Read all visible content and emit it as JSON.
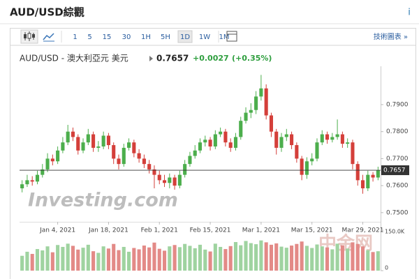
{
  "header": {
    "title": "AUD/USD綜觀",
    "info": "i"
  },
  "toolbar": {
    "intervals": [
      "1",
      "5",
      "15",
      "30",
      "1H",
      "5H",
      "1D",
      "1W",
      "1M"
    ],
    "active": "1D",
    "link": "技術圖表 »"
  },
  "quote": {
    "pair": "AUD/USD - 澳大利亞元 美元",
    "price": "0.7657",
    "change": "+0.0027",
    "percent": "(+0.35%)"
  },
  "chart_data": {
    "type": "candlestick",
    "open": [
      0.759,
      0.7605,
      0.762,
      0.7615,
      0.764,
      0.766,
      0.77,
      0.769,
      0.773,
      0.776,
      0.78,
      0.778,
      0.773,
      0.776,
      0.779,
      0.774,
      0.7745,
      0.7785,
      0.775,
      0.77,
      0.768,
      0.774,
      0.776,
      0.772,
      0.77,
      0.768,
      0.766,
      0.764,
      0.762,
      0.761,
      0.763,
      0.76,
      0.764,
      0.768,
      0.771,
      0.773,
      0.776,
      0.777,
      0.7745,
      0.779,
      0.78,
      0.776,
      0.774,
      0.778,
      0.784,
      0.787,
      0.788,
      0.793,
      0.796,
      0.786,
      0.78,
      0.774,
      0.778,
      0.779,
      0.775,
      0.77,
      0.764,
      0.769,
      0.77,
      0.776,
      0.779,
      0.777,
      0.778,
      0.779,
      0.7755,
      0.776,
      0.768,
      0.762,
      0.759,
      0.764,
      0.763
    ],
    "high": [
      0.762,
      0.764,
      0.7635,
      0.7655,
      0.768,
      0.772,
      0.7715,
      0.7745,
      0.778,
      0.7825,
      0.7815,
      0.779,
      0.7775,
      0.781,
      0.78,
      0.7765,
      0.78,
      0.7795,
      0.776,
      0.7715,
      0.7755,
      0.7775,
      0.777,
      0.7735,
      0.7715,
      0.7695,
      0.7675,
      0.7655,
      0.764,
      0.7645,
      0.764,
      0.7655,
      0.7695,
      0.7725,
      0.775,
      0.7775,
      0.7785,
      0.778,
      0.7805,
      0.7815,
      0.781,
      0.7775,
      0.7795,
      0.7855,
      0.789,
      0.7905,
      0.795,
      0.801,
      0.7975,
      0.787,
      0.781,
      0.7795,
      0.781,
      0.78,
      0.776,
      0.771,
      0.7705,
      0.772,
      0.7775,
      0.7805,
      0.78,
      0.7795,
      0.7845,
      0.78,
      0.7775,
      0.777,
      0.769,
      0.764,
      0.7655,
      0.765,
      0.767
    ],
    "low": [
      0.7575,
      0.7595,
      0.76,
      0.7605,
      0.763,
      0.765,
      0.7675,
      0.768,
      0.772,
      0.775,
      0.7765,
      0.7715,
      0.772,
      0.775,
      0.7725,
      0.7725,
      0.7735,
      0.7735,
      0.768,
      0.766,
      0.767,
      0.773,
      0.7705,
      0.7685,
      0.7665,
      0.7645,
      0.759,
      0.7605,
      0.7595,
      0.759,
      0.7585,
      0.759,
      0.763,
      0.767,
      0.77,
      0.772,
      0.7745,
      0.773,
      0.7735,
      0.778,
      0.7745,
      0.7725,
      0.773,
      0.777,
      0.783,
      0.785,
      0.7865,
      0.7915,
      0.7845,
      0.778,
      0.7715,
      0.7725,
      0.7765,
      0.7735,
      0.7685,
      0.762,
      0.7625,
      0.7675,
      0.769,
      0.775,
      0.7755,
      0.776,
      0.777,
      0.774,
      0.774,
      0.766,
      0.76,
      0.757,
      0.758,
      0.7615,
      0.762
    ],
    "close": [
      0.7605,
      0.762,
      0.7615,
      0.764,
      0.766,
      0.77,
      0.769,
      0.773,
      0.776,
      0.78,
      0.778,
      0.773,
      0.776,
      0.779,
      0.774,
      0.7745,
      0.7785,
      0.775,
      0.77,
      0.768,
      0.774,
      0.776,
      0.772,
      0.77,
      0.768,
      0.766,
      0.764,
      0.762,
      0.761,
      0.763,
      0.76,
      0.764,
      0.768,
      0.771,
      0.773,
      0.776,
      0.777,
      0.7745,
      0.779,
      0.78,
      0.776,
      0.774,
      0.778,
      0.784,
      0.787,
      0.788,
      0.793,
      0.796,
      0.786,
      0.78,
      0.774,
      0.778,
      0.779,
      0.775,
      0.77,
      0.764,
      0.769,
      0.77,
      0.776,
      0.779,
      0.777,
      0.778,
      0.779,
      0.7755,
      0.776,
      0.768,
      0.762,
      0.759,
      0.764,
      0.763,
      0.7657
    ],
    "volume": [
      55000,
      70000,
      62000,
      80000,
      75000,
      90000,
      68000,
      95000,
      88000,
      100000,
      92000,
      78000,
      85000,
      96000,
      72000,
      66000,
      90000,
      82000,
      99000,
      76000,
      88000,
      70000,
      84000,
      79000,
      93000,
      86000,
      104000,
      81000,
      74000,
      90000,
      95000,
      87000,
      99000,
      92000,
      83000,
      96000,
      78000,
      71000,
      100000,
      88000,
      80000,
      91000,
      106000,
      94000,
      110000,
      102000,
      98000,
      112000,
      105000,
      96000,
      101000,
      89000,
      85000,
      93000,
      99000,
      108000,
      92000,
      84000,
      97000,
      90000,
      86000,
      79000,
      100000,
      94000,
      82000,
      105000,
      99000,
      90000,
      76000,
      69000,
      72000
    ],
    "up_color": "#4cae4c",
    "down_color": "#d43f3a",
    "vol_up_color": "#9fd3a0",
    "vol_down_color": "#e38a87",
    "xlim": [
      -0.5,
      70.5
    ],
    "xticks": [
      {
        "value": 7,
        "label": "Jan 4, 2021"
      },
      {
        "value": 17,
        "label": "Jan 18, 2021"
      },
      {
        "value": 27,
        "label": "Feb 1, 2021"
      },
      {
        "value": 37,
        "label": "Feb 15, 2021"
      },
      {
        "value": 47,
        "label": "Mar 1, 2021"
      },
      {
        "value": 57,
        "label": "Mar 15, 2021"
      },
      {
        "value": 67,
        "label": "Mar 29, 2021"
      }
    ],
    "ylim": [
      0.7466,
      0.8042
    ],
    "yticks": [
      {
        "value": 0.79,
        "label": "0.7900"
      },
      {
        "value": 0.78,
        "label": "0.7800"
      },
      {
        "value": 0.77,
        "label": "0.7700"
      },
      {
        "value": 0.76,
        "label": "0.7600"
      },
      {
        "value": 0.75,
        "label": "0.7500"
      }
    ],
    "volume_ylim": [
      0,
      150000
    ],
    "volume_yticks": [
      {
        "value": 150000,
        "label": "150.0K"
      },
      0
    ],
    "last_price": 0.7657,
    "watermarks": [
      "Investing.com",
      "中金网"
    ]
  }
}
